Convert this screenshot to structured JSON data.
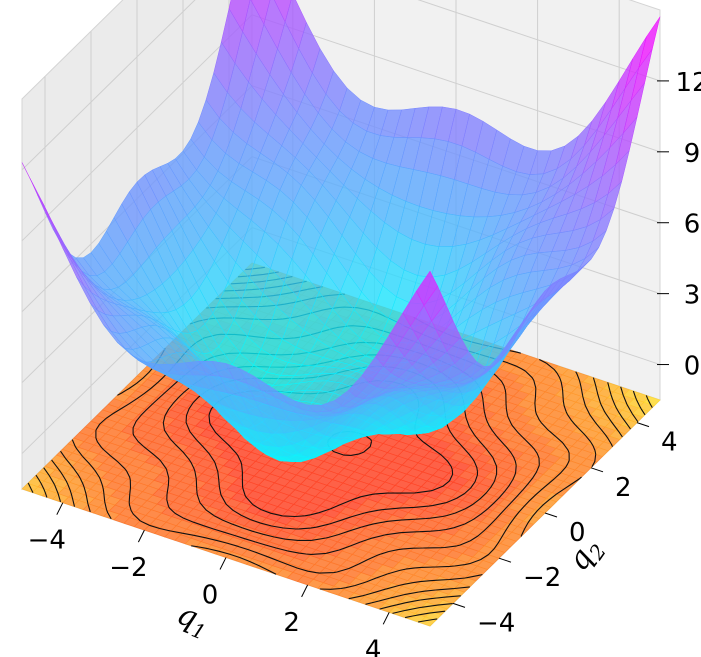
{
  "chart_data": {
    "type": "surface",
    "x_label_symbol": "q",
    "x_label_sub": "1",
    "y_label_symbol": "q",
    "y_label_sub": "2",
    "x_range": [
      -5,
      5
    ],
    "y_range": [
      -5,
      5
    ],
    "z_range": [
      -1.5,
      15
    ],
    "x_ticks": [
      -4,
      -2,
      0,
      2,
      4
    ],
    "x_tick_labels": [
      "−4",
      "−2",
      "0",
      "2",
      "4"
    ],
    "y_ticks": [
      -4,
      -2,
      0,
      2,
      4
    ],
    "y_tick_labels": [
      "−4",
      "−2",
      "0",
      "2",
      "4"
    ],
    "z_ticks": [
      0,
      3,
      6,
      9,
      12
    ],
    "z_tick_labels": [
      "0",
      "3",
      "6",
      "9",
      "12"
    ],
    "surface_colormap": "cool",
    "contour_colormap": "autumn",
    "surface_corner_values": {
      "q1_-5_q2_-5": 5.6,
      "q1_5_q2_-5": 6.0,
      "q1_-5_q2_5": 11.5,
      "q1_5_q2_5": 13.5,
      "minimum_near_center": 1.1
    },
    "grid": true
  }
}
